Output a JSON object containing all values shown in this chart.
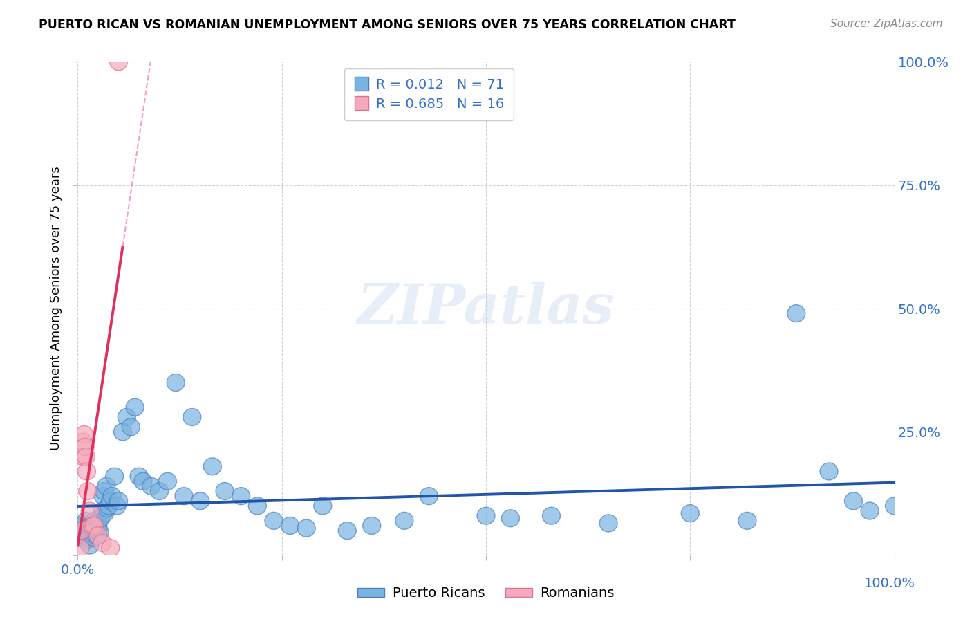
{
  "title": "PUERTO RICAN VS ROMANIAN UNEMPLOYMENT AMONG SENIORS OVER 75 YEARS CORRELATION CHART",
  "source": "Source: ZipAtlas.com",
  "ylabel": "Unemployment Among Seniors over 75 years",
  "xmin": 0.0,
  "xmax": 1.0,
  "ymin": 0.0,
  "ymax": 1.0,
  "xticks": [
    0.0,
    0.25,
    0.5,
    0.75,
    1.0
  ],
  "yticks": [
    0.0,
    0.25,
    0.5,
    0.75,
    1.0
  ],
  "blue_color": "#7ab3e0",
  "blue_edge": "#4a80c0",
  "pink_color": "#f5aabb",
  "pink_edge": "#e07090",
  "trend_blue_color": "#2255aa",
  "trend_pink_color": "#e03060",
  "pr_R": 0.012,
  "pr_N": 71,
  "ro_R": 0.685,
  "ro_N": 16,
  "pr_x": [
    0.005,
    0.007,
    0.008,
    0.01,
    0.01,
    0.012,
    0.013,
    0.014,
    0.015,
    0.015,
    0.016,
    0.017,
    0.018,
    0.019,
    0.02,
    0.02,
    0.021,
    0.022,
    0.023,
    0.025,
    0.025,
    0.027,
    0.028,
    0.03,
    0.031,
    0.032,
    0.033,
    0.035,
    0.036,
    0.038,
    0.04,
    0.042,
    0.045,
    0.048,
    0.05,
    0.055,
    0.06,
    0.065,
    0.07,
    0.075,
    0.08,
    0.09,
    0.1,
    0.11,
    0.12,
    0.13,
    0.14,
    0.15,
    0.165,
    0.18,
    0.2,
    0.22,
    0.24,
    0.26,
    0.28,
    0.3,
    0.33,
    0.36,
    0.4,
    0.43,
    0.5,
    0.53,
    0.58,
    0.65,
    0.75,
    0.82,
    0.88,
    0.92,
    0.95,
    0.97,
    1.0
  ],
  "pr_y": [
    0.06,
    0.04,
    0.05,
    0.03,
    0.07,
    0.045,
    0.055,
    0.035,
    0.02,
    0.06,
    0.04,
    0.05,
    0.045,
    0.055,
    0.035,
    0.07,
    0.05,
    0.06,
    0.04,
    0.065,
    0.055,
    0.045,
    0.075,
    0.09,
    0.12,
    0.13,
    0.085,
    0.14,
    0.095,
    0.1,
    0.11,
    0.12,
    0.16,
    0.1,
    0.11,
    0.25,
    0.28,
    0.26,
    0.3,
    0.16,
    0.15,
    0.14,
    0.13,
    0.15,
    0.35,
    0.12,
    0.28,
    0.11,
    0.18,
    0.13,
    0.12,
    0.1,
    0.07,
    0.06,
    0.055,
    0.1,
    0.05,
    0.06,
    0.07,
    0.12,
    0.08,
    0.075,
    0.08,
    0.065,
    0.085,
    0.07,
    0.49,
    0.17,
    0.11,
    0.09,
    0.1
  ],
  "ro_x": [
    0.003,
    0.005,
    0.006,
    0.007,
    0.008,
    0.009,
    0.01,
    0.011,
    0.012,
    0.015,
    0.018,
    0.02,
    0.025,
    0.03,
    0.04,
    0.05
  ],
  "ro_y": [
    0.015,
    0.05,
    0.2,
    0.23,
    0.245,
    0.22,
    0.2,
    0.17,
    0.13,
    0.09,
    0.06,
    0.06,
    0.04,
    0.025,
    0.015,
    1.0
  ],
  "watermark": "ZIPatlas",
  "background_color": "#ffffff",
  "grid_color": "#cccccc"
}
